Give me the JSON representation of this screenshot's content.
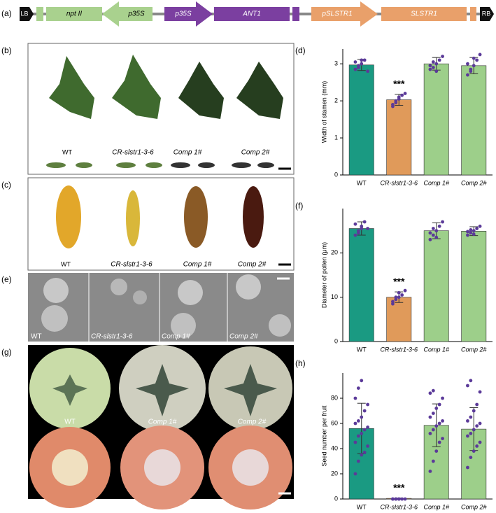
{
  "panel_labels": [
    "(a)",
    "(b)",
    "(c)",
    "(e)",
    "(g)",
    "(d)",
    "(f)",
    "(h)"
  ],
  "construct": [
    "LB",
    "npt II",
    "p35S",
    "p35S",
    "ANT1",
    "pSLSTR1",
    "SLSTR1",
    "RB"
  ],
  "photos_b": [
    "WT",
    "CR-slstr1-3-6",
    "Comp 1#",
    "Comp 2#"
  ],
  "photos_c": [
    "WT",
    "CR-slstr1-3-6",
    "Comp 1#",
    "Comp 2#"
  ],
  "photos_e": [
    "WT",
    "CR-slstr1-3-6",
    "Comp 1#",
    "Comp 2#"
  ],
  "photos_g": [
    "WT",
    "Comp 1#",
    "Comp 2#"
  ],
  "chart_data": [
    {
      "type": "bar",
      "y_label": "Width of stamen (mm)",
      "categories": [
        "WT",
        "CR-slstr1-3-6",
        "Comp 1#",
        "Comp 2#"
      ],
      "values": [
        2.97,
        2.03,
        3.0,
        2.95
      ],
      "errors": [
        0.15,
        0.15,
        0.17,
        0.22
      ],
      "colors": [
        "#1a9a82",
        "#e09a5a",
        "#9dcf8a",
        "#9dcf8a"
      ],
      "point_color": "#5b3a99",
      "points": [
        [
          2.85,
          2.9,
          3.0,
          3.1,
          2.8,
          3.05,
          2.95,
          3.1
        ],
        [
          1.85,
          1.95,
          2.05,
          2.15,
          2.2,
          1.9,
          2.0,
          2.1
        ],
        [
          2.85,
          2.9,
          3.0,
          3.1,
          3.2,
          2.95,
          3.05,
          2.8
        ],
        [
          2.7,
          2.8,
          2.95,
          3.1,
          3.25,
          3.0,
          2.85,
          3.15
        ]
      ],
      "significance": [
        null,
        "***",
        null,
        null
      ],
      "ylim": [
        0,
        3.4
      ],
      "yticks": [
        0,
        1,
        2,
        3
      ]
    },
    {
      "type": "bar",
      "y_label": "Diameter of pollen (μm)",
      "categories": [
        "WT",
        "CR-slstr1-3-6",
        "Comp 1#",
        "Comp 2#"
      ],
      "values": [
        25.5,
        10,
        25,
        24.9
      ],
      "errors": [
        1.5,
        1.2,
        1.8,
        1
      ],
      "colors": [
        "#1a9a82",
        "#e09a5a",
        "#9dcf8a",
        "#9dcf8a"
      ],
      "point_color": "#5b3a99",
      "points": [
        [
          24,
          25,
          26,
          27,
          25.5,
          26.5,
          24.5,
          25.5
        ],
        [
          8.5,
          9.5,
          10,
          10.5,
          11.5,
          9,
          10,
          11
        ],
        [
          23,
          24,
          25,
          26,
          27,
          24.5,
          25.5,
          23.5
        ],
        [
          24,
          24.5,
          25,
          25.5,
          26,
          24.8,
          25.2,
          24.2
        ]
      ],
      "significance": [
        null,
        "***",
        null,
        null
      ],
      "ylim": [
        0,
        30
      ],
      "yticks": [
        0,
        10,
        20
      ]
    },
    {
      "type": "bar",
      "y_label": "Seed number per fruit",
      "categories": [
        "WT",
        "CR-slstr1-3-6",
        "Comp 1#",
        "Comp 2#"
      ],
      "values": [
        56,
        0.5,
        58.5,
        55.5
      ],
      "errors": [
        20,
        0.3,
        17,
        17
      ],
      "colors": [
        "#1a9a82",
        "#e09a5a",
        "#9dcf8a",
        "#9dcf8a"
      ],
      "point_color": "#5b3a99",
      "points": [
        [
          20,
          30,
          35,
          37,
          42,
          45,
          50,
          52,
          55,
          57,
          60,
          62,
          65,
          70,
          75,
          80,
          88,
          94
        ],
        [
          0,
          0,
          0,
          0,
          0,
          0,
          0,
          0
        ],
        [
          22,
          30,
          38,
          45,
          48,
          52,
          55,
          58,
          60,
          62,
          65,
          68,
          72,
          75,
          80,
          84,
          86
        ],
        [
          25,
          33,
          38,
          42,
          45,
          50,
          52,
          55,
          58,
          60,
          62,
          65,
          70,
          75,
          85,
          90,
          94
        ]
      ],
      "significance": [
        null,
        "***",
        null,
        null
      ],
      "ylim": [
        0,
        100
      ],
      "yticks": [
        0,
        20,
        40,
        60,
        80
      ]
    }
  ]
}
